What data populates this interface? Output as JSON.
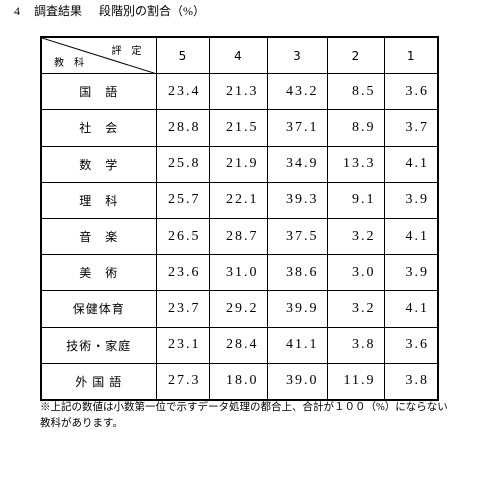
{
  "heading": {
    "number": "4",
    "section": "調査結果",
    "title": "段階別の割合（%）"
  },
  "table": {
    "corner_top": "評　定",
    "corner_bottom": "教　科",
    "columns": [
      "5",
      "4",
      "3",
      "2",
      "1"
    ],
    "rows": [
      {
        "subject": "国　語",
        "values": [
          "23.4",
          "21.3",
          "43.2",
          "8.5",
          "3.6"
        ]
      },
      {
        "subject": "社　会",
        "values": [
          "28.8",
          "21.5",
          "37.1",
          "8.9",
          "3.7"
        ]
      },
      {
        "subject": "数　学",
        "values": [
          "25.8",
          "21.9",
          "34.9",
          "13.3",
          "4.1"
        ]
      },
      {
        "subject": "理　科",
        "values": [
          "25.7",
          "22.1",
          "39.3",
          "9.1",
          "3.9"
        ]
      },
      {
        "subject": "音　楽",
        "values": [
          "26.5",
          "28.7",
          "37.5",
          "3.2",
          "4.1"
        ]
      },
      {
        "subject": "美　術",
        "values": [
          "23.6",
          "31.0",
          "38.6",
          "3.0",
          "3.9"
        ]
      },
      {
        "subject": "保健体育",
        "values": [
          "23.7",
          "29.2",
          "39.9",
          "3.2",
          "4.1"
        ]
      },
      {
        "subject": "技術・家庭",
        "values": [
          "23.1",
          "28.4",
          "41.1",
          "3.8",
          "3.6"
        ]
      },
      {
        "subject": "外 国 語",
        "values": [
          "27.3",
          "18.0",
          "39.0",
          "11.9",
          "3.8"
        ]
      }
    ]
  },
  "footnote": [
    "※上記の数値は小数第一位で示すデータ処理の都合上、合計が１００（%）にならない",
    "教科があります。"
  ]
}
